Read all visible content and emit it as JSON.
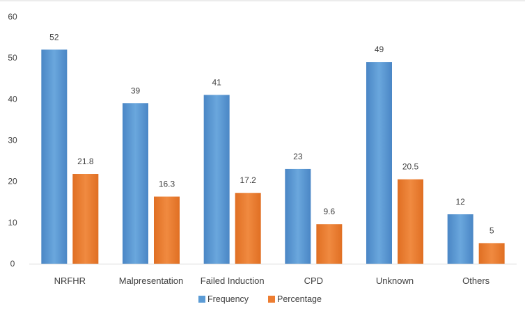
{
  "chart_data": {
    "type": "bar",
    "categories": [
      "NRFHR",
      "Malpresentation",
      "Failed Induction",
      "CPD",
      "Unknown",
      "Others"
    ],
    "series": [
      {
        "name": "Frequency",
        "color": "#5b9bd5",
        "values": [
          52,
          39,
          41,
          23,
          49,
          12
        ],
        "labels": [
          "52",
          "39",
          "41",
          "23",
          "49",
          "12"
        ]
      },
      {
        "name": "Percentage",
        "color": "#ed7d31",
        "values": [
          21.8,
          16.3,
          17.2,
          9.6,
          20.5,
          5
        ],
        "labels": [
          "21.8",
          "16.3",
          "17.2",
          "9.6",
          "20.5",
          "5"
        ]
      }
    ],
    "ylim": [
      0,
      60
    ],
    "yticks": [
      "0",
      "10",
      "20",
      "30",
      "40",
      "50",
      "60"
    ],
    "grid": false,
    "legend": "bottom-center",
    "title": "",
    "xlabel": "",
    "ylabel": ""
  }
}
